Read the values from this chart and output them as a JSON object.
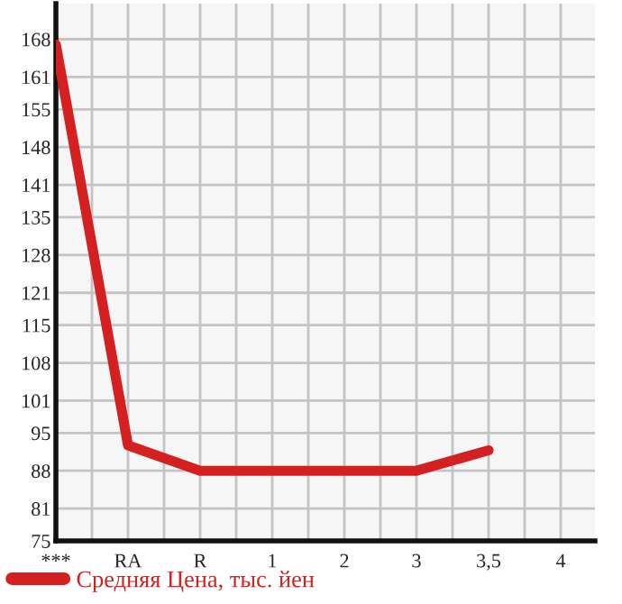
{
  "chart_data": {
    "type": "line",
    "categories": [
      "***",
      "RA",
      "R",
      "1",
      "2",
      "3",
      "3,5",
      "4"
    ],
    "series": [
      {
        "name": "Средняя Цена, тыс. йен",
        "color": "#d42020",
        "values": [
          167,
          92.7,
          88,
          88,
          88,
          88,
          91.8,
          null
        ]
      }
    ],
    "ylim": [
      75,
      174.6
    ],
    "yticks": [
      75,
      81,
      88,
      95,
      101,
      108,
      115,
      121,
      128,
      135,
      141,
      148,
      155,
      161,
      168
    ],
    "grid": true,
    "legend": "bottom",
    "marker": "none",
    "line_style": "solid"
  }
}
